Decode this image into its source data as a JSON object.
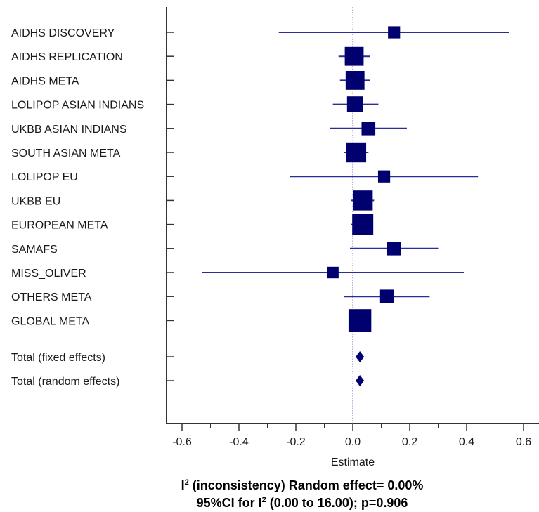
{
  "chart_data": {
    "type": "forest",
    "xlabel": "Estimate",
    "xlim": [
      -0.65,
      0.65
    ],
    "xticks": [
      -0.6,
      -0.4,
      -0.2,
      0.0,
      0.2,
      0.4,
      0.6
    ],
    "xtick_labels": [
      "-0.6",
      "-0.4",
      "-0.2",
      "0.0",
      "0.2",
      "0.4",
      "0.6"
    ],
    "reference_line": 0,
    "marker_color": "#00006e",
    "ci_color": "#2b2b9a",
    "studies": [
      {
        "label": "AIDHS DISCOVERY",
        "estimate": 0.145,
        "ci": [
          -0.26,
          0.55
        ],
        "weight": 0.9
      },
      {
        "label": "AIDHS REPLICATION",
        "estimate": 0.005,
        "ci": [
          -0.05,
          0.06
        ],
        "weight": 2.1
      },
      {
        "label": "AIDHS META",
        "estimate": 0.008,
        "ci": [
          -0.045,
          0.06
        ],
        "weight": 2.1
      },
      {
        "label": "LOLIPOP ASIAN INDIANS",
        "estimate": 0.008,
        "ci": [
          -0.07,
          0.09
        ],
        "weight": 1.6
      },
      {
        "label": "UKBB ASIAN INDIANS",
        "estimate": 0.055,
        "ci": [
          -0.08,
          0.19
        ],
        "weight": 1.2
      },
      {
        "label": "SOUTH ASIAN META",
        "estimate": 0.012,
        "ci": [
          -0.03,
          0.055
        ],
        "weight": 2.3
      },
      {
        "label": "LOLIPOP EU",
        "estimate": 0.11,
        "ci": [
          -0.22,
          0.44
        ],
        "weight": 0.9
      },
      {
        "label": "UKBB EU",
        "estimate": 0.035,
        "ci": [
          -0.005,
          0.075
        ],
        "weight": 2.3
      },
      {
        "label": "EUROPEAN META",
        "estimate": 0.035,
        "ci": [
          -0.005,
          0.07
        ],
        "weight": 2.5
      },
      {
        "label": "SAMAFS",
        "estimate": 0.145,
        "ci": [
          -0.01,
          0.3
        ],
        "weight": 1.2
      },
      {
        "label": "MISS_OLIVER",
        "estimate": -0.07,
        "ci": [
          -0.53,
          0.39
        ],
        "weight": 0.8
      },
      {
        "label": "OTHERS META",
        "estimate": 0.12,
        "ci": [
          -0.03,
          0.27
        ],
        "weight": 1.2
      },
      {
        "label": "GLOBAL META",
        "estimate": 0.025,
        "ci": [
          0.005,
          0.045
        ],
        "weight": 2.8
      }
    ],
    "totals": [
      {
        "label": "Total (fixed effects)",
        "estimate": 0.025
      },
      {
        "label": "Total (random effects)",
        "estimate": 0.025
      }
    ]
  },
  "stats": {
    "line1_prefix": "I",
    "line1_sup": "2",
    "line1_rest": " (inconsistency) Random effect= 0.00%",
    "line2_prefix": "95%CI for I",
    "line2_sup": "2",
    "line2_rest": " (0.00 to 16.00); p=0.906"
  }
}
